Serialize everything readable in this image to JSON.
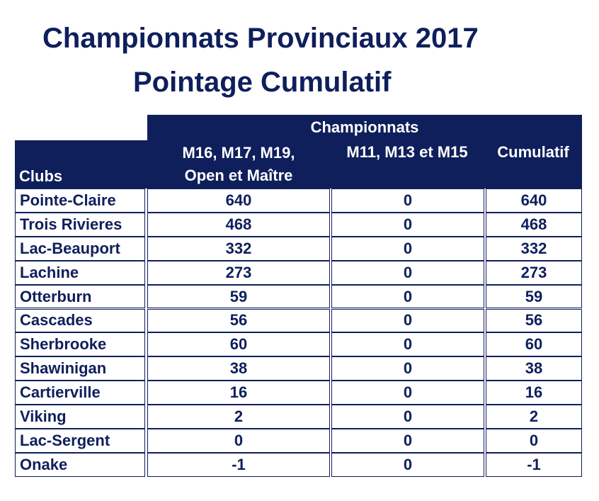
{
  "title": {
    "line1": "Championnats Provinciaux 2017",
    "line2": "Pointage Cumulatif"
  },
  "table": {
    "group_header": "Championnats",
    "col_clubs": "Clubs",
    "col_a_line1": "M16, M17, M19,",
    "col_a_line2": "Open et Maître",
    "col_b": "M11, M13 et M15",
    "col_c": "Cumulatif",
    "rows": [
      {
        "club": "Pointe-Claire",
        "a": "640",
        "b": "0",
        "c": "640"
      },
      {
        "club": "Trois Rivieres",
        "a": "468",
        "b": "0",
        "c": "468"
      },
      {
        "club": "Lac-Beauport",
        "a": "332",
        "b": "0",
        "c": "332"
      },
      {
        "club": "Lachine",
        "a": "273",
        "b": "0",
        "c": "273"
      },
      {
        "club": "Otterburn",
        "a": "59",
        "b": "0",
        "c": "59"
      },
      {
        "club": "Cascades",
        "a": "56",
        "b": "0",
        "c": "56"
      },
      {
        "club": "Sherbrooke",
        "a": "60",
        "b": "0",
        "c": "60"
      },
      {
        "club": "Shawinigan",
        "a": "38",
        "b": "0",
        "c": "38"
      },
      {
        "club": "Cartierville",
        "a": "16",
        "b": "0",
        "c": "16"
      },
      {
        "club": "Viking",
        "a": "2",
        "b": "0",
        "c": "2"
      },
      {
        "club": "Lac-Sergent",
        "a": "0",
        "b": "0",
        "c": "0"
      },
      {
        "club": "Onake",
        "a": "-1",
        "b": "0",
        "c": "-1"
      }
    ]
  },
  "colors": {
    "navy": "#0f1f5c",
    "white": "#ffffff"
  }
}
